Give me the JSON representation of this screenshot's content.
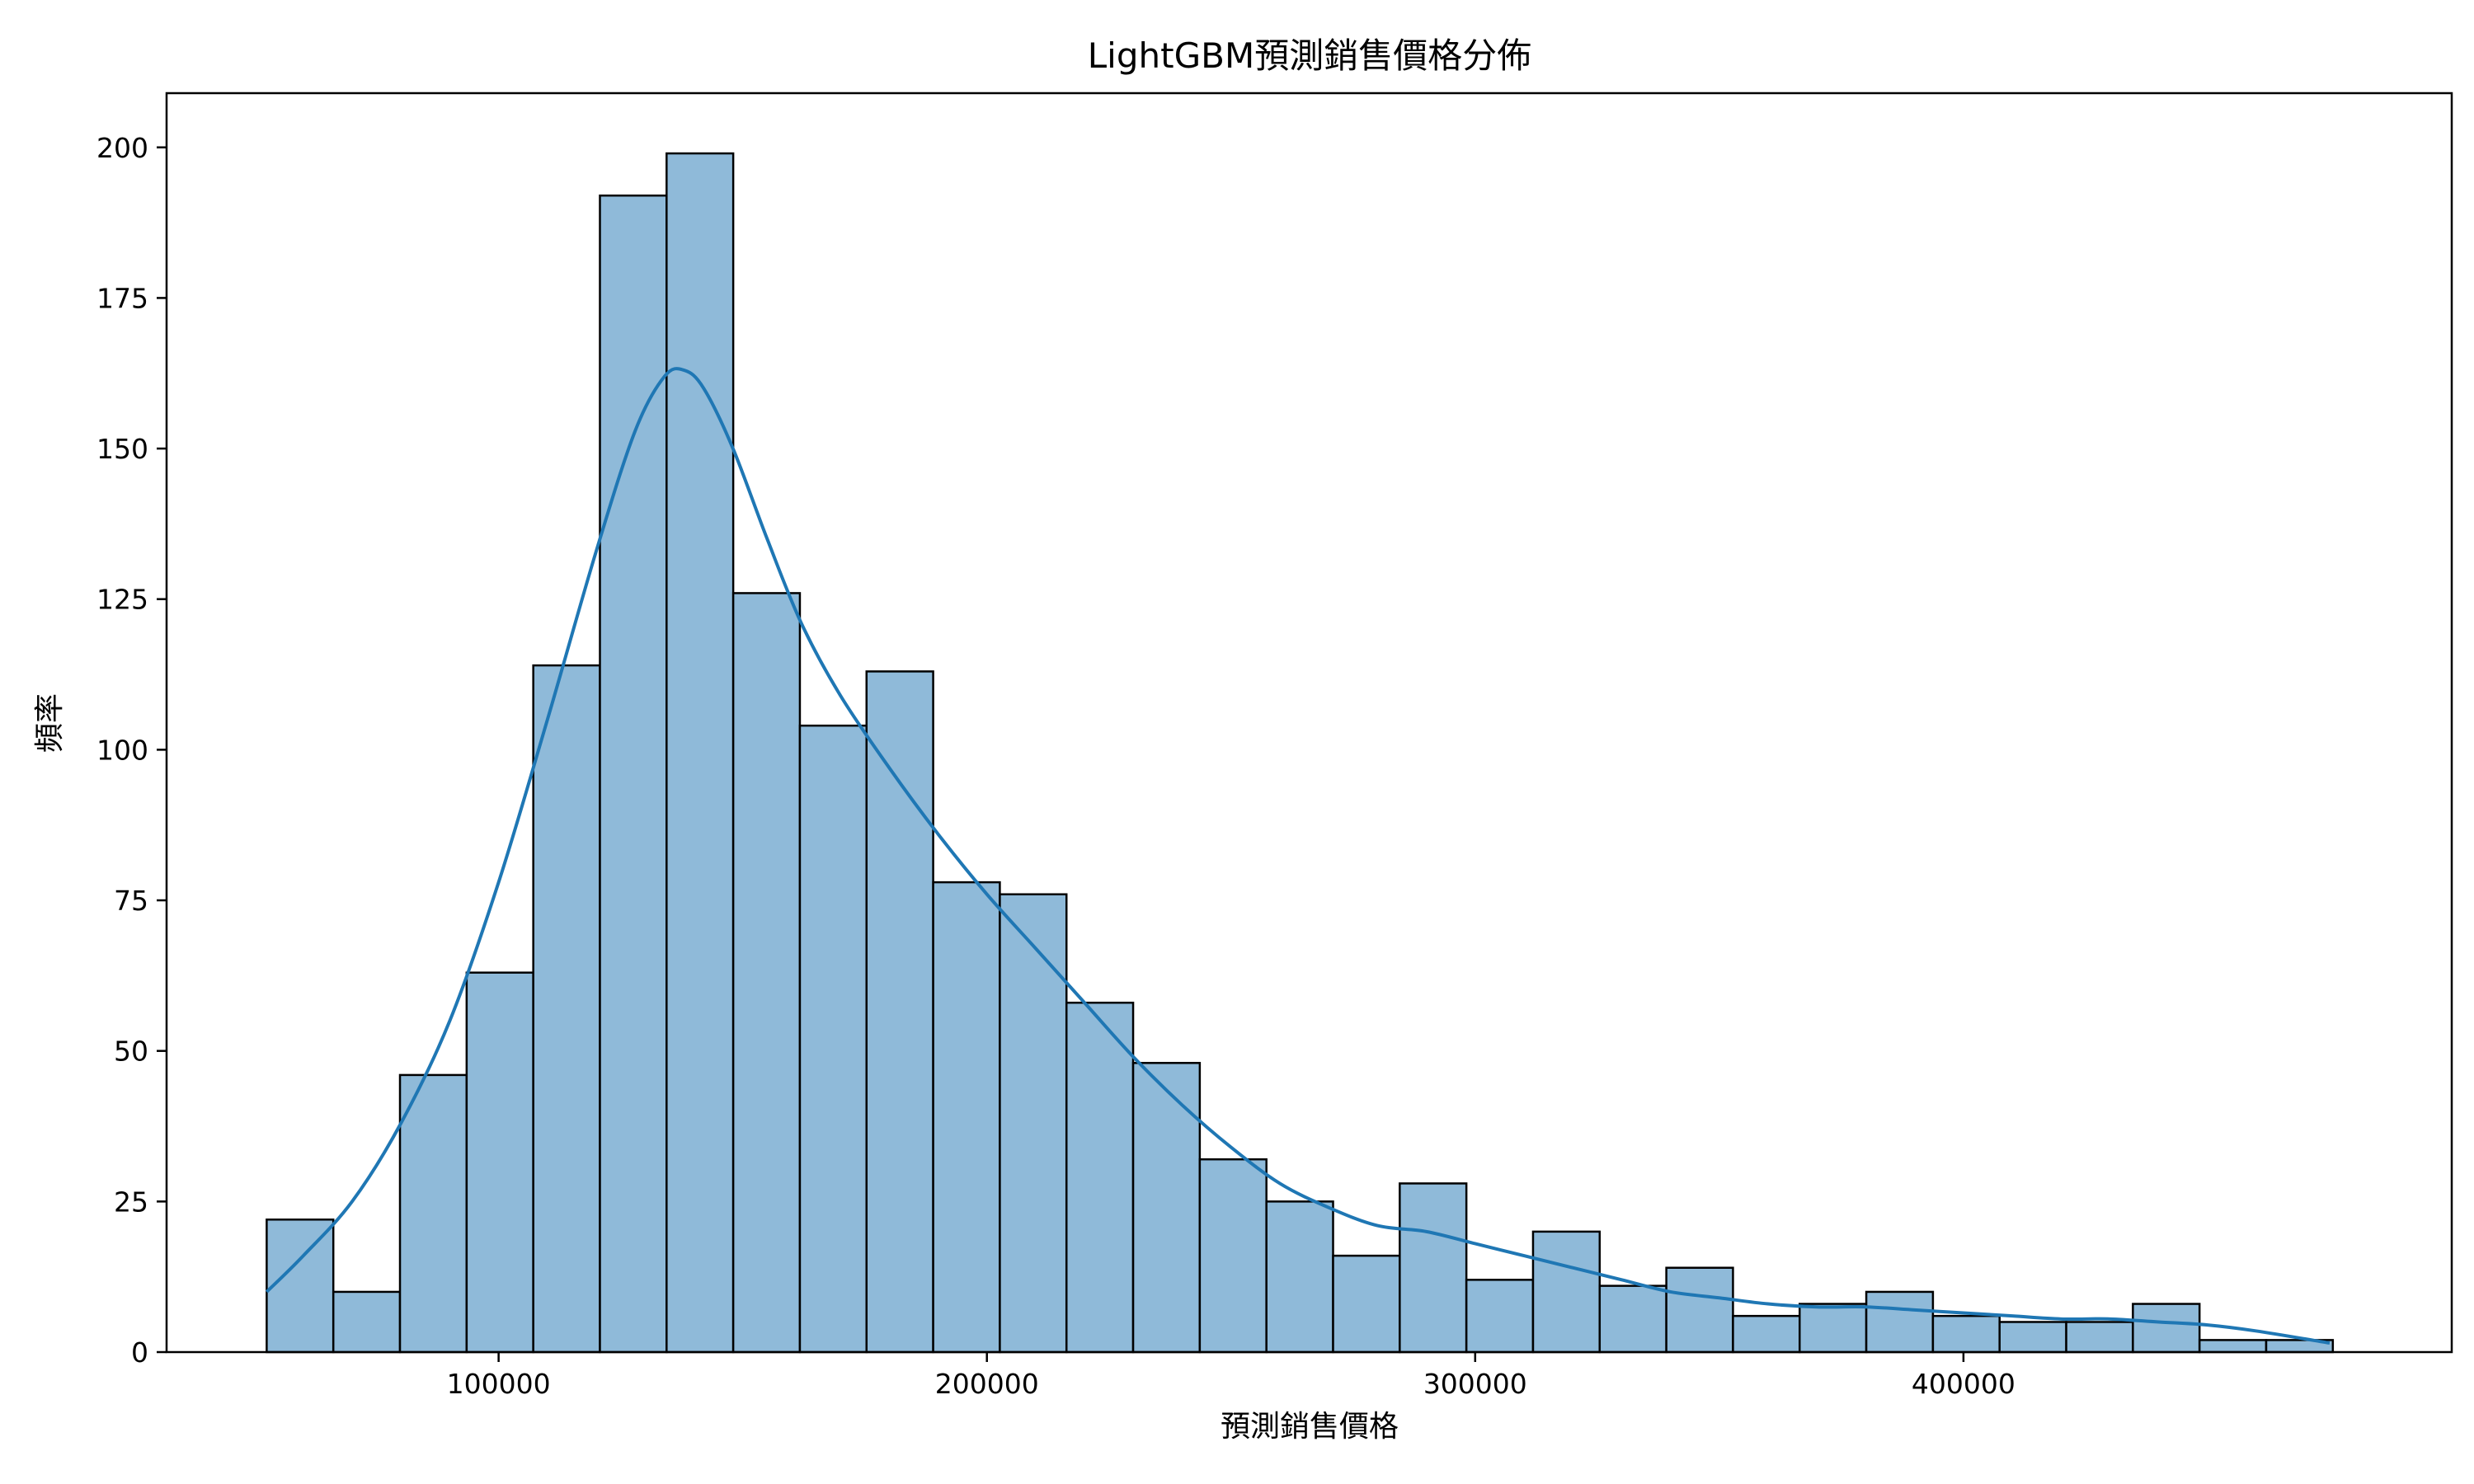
{
  "chart_data": {
    "type": "bar",
    "title": "LightGBM預測銷售價格分佈",
    "xlabel": "預測銷售價格",
    "ylabel": "頻率",
    "xlim": [
      32000,
      500000
    ],
    "ylim": [
      0,
      209
    ],
    "xticks": [
      100000,
      200000,
      300000,
      400000
    ],
    "yticks": [
      0,
      25,
      50,
      75,
      100,
      125,
      150,
      175,
      200
    ],
    "grid": false,
    "legend": "none",
    "bin_start": 52500,
    "bin_width": 13650,
    "values": [
      22,
      10,
      46,
      63,
      114,
      192,
      199,
      126,
      104,
      113,
      78,
      76,
      58,
      48,
      32,
      25,
      16,
      28,
      12,
      20,
      11,
      14,
      6,
      8,
      10,
      6,
      5,
      5,
      8,
      2,
      2
    ],
    "kde": {
      "x": [
        52500,
        60000,
        70000,
        80000,
        90000,
        100000,
        110000,
        120000,
        128000,
        134000,
        138000,
        142000,
        148000,
        155000,
        162000,
        170000,
        180000,
        190000,
        200000,
        210000,
        220000,
        230000,
        240000,
        250000,
        260000,
        270000,
        280000,
        290000,
        300000,
        310000,
        320000,
        330000,
        340000,
        350000,
        360000,
        370000,
        380000,
        390000,
        400000,
        410000,
        420000,
        430000,
        440000,
        450000,
        460000,
        475000
      ],
      "y": [
        10,
        16,
        25,
        38,
        55,
        78,
        105,
        133,
        153,
        162,
        163,
        160,
        150,
        135,
        121,
        109,
        97,
        86,
        76,
        67,
        58,
        49,
        41,
        34,
        28,
        24,
        21,
        20,
        18,
        16,
        14,
        12,
        10,
        9,
        8,
        7.5,
        7.5,
        7,
        6.5,
        6,
        5.5,
        5.5,
        5,
        4.5,
        3.5,
        1.5
      ]
    },
    "colors": {
      "bar_fill": "#8fbad9",
      "bar_edge": "#000000",
      "kde_line": "#1f77b4"
    }
  }
}
